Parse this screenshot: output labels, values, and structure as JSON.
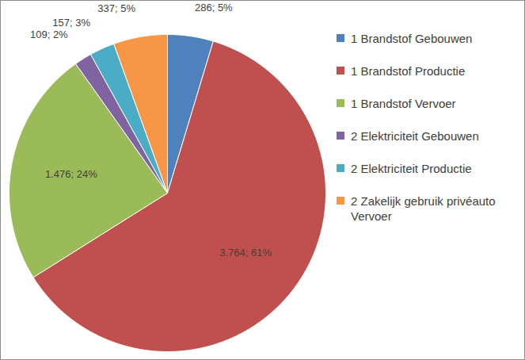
{
  "chart_data": {
    "type": "pie",
    "categories": [
      "1 Brandstof Gebouwen",
      "1 Brandstof Productie",
      "1 Brandstof Vervoer",
      "2 Elektriciteit Gebouwen",
      "2 Elektriciteit Productie",
      "2 Zakelijk gebruik privéauto Vervoer"
    ],
    "values": [
      286,
      3764,
      1476,
      109,
      157,
      337
    ],
    "value_labels": [
      "286; 5%",
      "3.764; 61%",
      "1.476; 24%",
      "109; 2%",
      "157; 3%",
      "337; 5%"
    ],
    "colors": [
      "#4f81bd",
      "#c0504d",
      "#9bbb59",
      "#8064a2",
      "#4bacc6",
      "#f79646"
    ],
    "data_labels": true,
    "legend": "right"
  }
}
